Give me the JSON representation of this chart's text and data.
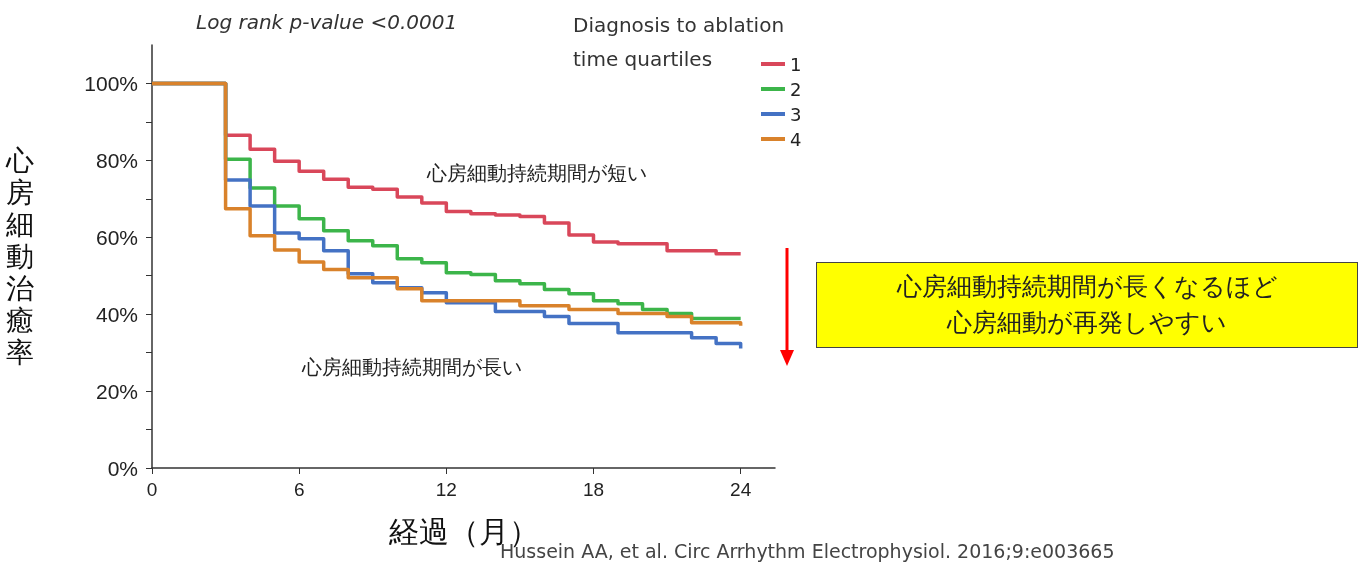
{
  "chart_data": {
    "type": "step",
    "xlabel": "経過（月）",
    "ylabel": "心房細動治癒率",
    "legend_title": "Diagnosis to ablation\ntime quartiles",
    "xlim": [
      0,
      25.4
    ],
    "xticks": [
      0,
      6,
      12,
      18,
      24
    ],
    "ylim": [
      0,
      110
    ],
    "yticks": [
      {
        "value": 0,
        "label": "0%"
      },
      {
        "value": 10,
        "label": null
      },
      {
        "value": 20,
        "label": "20%"
      },
      {
        "value": 30,
        "label": null
      },
      {
        "value": 40,
        "label": "40%"
      },
      {
        "value": 50,
        "label": null
      },
      {
        "value": 60,
        "label": "60%"
      },
      {
        "value": 70,
        "label": null
      },
      {
        "value": 80,
        "label": "80%"
      },
      {
        "value": 90,
        "label": null
      },
      {
        "value": 100,
        "label": "100%"
      }
    ],
    "legend": "top right",
    "grid": false,
    "marker": "none",
    "line_style": "solid",
    "series": [
      {
        "name": "1",
        "color": "#d9475a",
        "x": [
          0,
          3,
          4,
          5,
          6,
          7,
          8,
          9,
          10,
          11,
          12,
          13,
          14,
          15,
          16,
          17,
          18,
          19,
          21,
          23,
          24
        ],
        "values": [
          100,
          86.5,
          82.9,
          79.8,
          77.2,
          75.1,
          73,
          72.5,
          70.5,
          68.9,
          66.7,
          66.1,
          65.8,
          65.4,
          63.7,
          60.6,
          58.8,
          58.3,
          56.5,
          55.7,
          55.7
        ]
      },
      {
        "name": "2",
        "color": "#3cb54a",
        "x": [
          0,
          3,
          4,
          5,
          6,
          7,
          8,
          9,
          10,
          11,
          12,
          13,
          14,
          15,
          16,
          17,
          18,
          19,
          20,
          21,
          22,
          24
        ],
        "values": [
          100,
          80.3,
          72.8,
          68.1,
          64.8,
          61.7,
          59.1,
          57.8,
          54.4,
          53.4,
          50.8,
          50.3,
          48.7,
          47.9,
          46.4,
          45.3,
          43.5,
          42.7,
          41.2,
          40.2,
          38.9,
          38.9
        ]
      },
      {
        "name": "3",
        "color": "#4472c4",
        "x": [
          0,
          3,
          4,
          5,
          6,
          7,
          8,
          9,
          10,
          11,
          12,
          14,
          16,
          17,
          19,
          22,
          23,
          24
        ],
        "values": [
          100,
          74.9,
          68.1,
          61.1,
          59.6,
          56.5,
          50.5,
          48.2,
          46.9,
          45.6,
          43,
          40.7,
          39.4,
          37.6,
          35.2,
          33.9,
          32.4,
          31.1
        ]
      },
      {
        "name": "4",
        "color": "#d9822b",
        "x": [
          0,
          3,
          4,
          5,
          6,
          7,
          8,
          10,
          11,
          15,
          17,
          19,
          21,
          22,
          24
        ],
        "values": [
          100,
          67.4,
          60.4,
          56.7,
          53.6,
          51.6,
          49.5,
          46.6,
          43.5,
          42.2,
          41.2,
          40.2,
          39.4,
          37.8,
          37
        ]
      }
    ],
    "annotations": [
      "Log rank p-value <0.0001",
      "心房細動持続期間が短い",
      "心房細動持続期間が長い",
      "心房細動持続期間が長くなるほど心房細動が再発しやすい",
      "Hussein AA, et al. Circ Arrhythm Electrophysiol. 2016;9:e003665"
    ]
  }
}
